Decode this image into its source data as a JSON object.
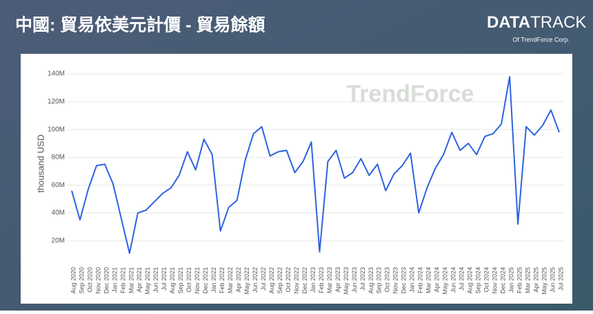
{
  "header": {
    "title": "中國: 貿易依美元計價 - 貿易餘額"
  },
  "logo": {
    "bold": "DATA",
    "light": "TRACK",
    "sub": "Of TrendForce Corp."
  },
  "watermark": "TrendForce",
  "chart_data": {
    "type": "line",
    "y_label": "thousand USD",
    "color": "#2d62e0",
    "grid": true,
    "ylim": [
      8000000,
      146000000
    ],
    "yticks": [
      {
        "value": 20000000,
        "label": "20M"
      },
      {
        "value": 40000000,
        "label": "40M"
      },
      {
        "value": 60000000,
        "label": "60M"
      },
      {
        "value": 80000000,
        "label": "80M"
      },
      {
        "value": 100000000,
        "label": "100M"
      },
      {
        "value": 120000000,
        "label": "120M"
      },
      {
        "value": 140000000,
        "label": "140M"
      }
    ],
    "categories": [
      "Aug 2020",
      "Sep 2020",
      "Oct 2020",
      "Nov 2020",
      "Dec 2020",
      "Jan 2021",
      "Feb 2021",
      "Mar 2021",
      "Apr 2021",
      "May 2021",
      "Jun 2021",
      "Jul 2021",
      "Aug 2021",
      "Sep 2021",
      "Oct 2021",
      "Nov 2021",
      "Dec 2021",
      "Jan 2022",
      "Feb 2022",
      "Mar 2022",
      "Apr 2022",
      "May 2022",
      "Jun 2022",
      "Jul 2022",
      "Aug 2022",
      "Sep 2022",
      "Oct 2022",
      "Nov 2022",
      "Dec 2022",
      "Jan 2023",
      "Feb 2023",
      "Mar 2023",
      "Apr 2023",
      "May 2023",
      "Jun 2023",
      "Jul 2023",
      "Aug 2023",
      "Sep 2023",
      "Oct 2023",
      "Nov 2023",
      "Dec 2023",
      "Jan 2024",
      "Feb 2024",
      "Mar 2024",
      "Apr 2024",
      "May 2024",
      "Jun 2024",
      "Jul 2024",
      "Aug 2024",
      "Sep 2024",
      "Oct 2024",
      "Nov 2024",
      "Dec 2024",
      "Jan 2025",
      "Feb 2025",
      "Mar 2025",
      "Apr 2025",
      "May 2025",
      "Jun 2025",
      "Jul 2025"
    ],
    "values": [
      56000000,
      35000000,
      57000000,
      74000000,
      75000000,
      61000000,
      36000000,
      11000000,
      40000000,
      42000000,
      48000000,
      54000000,
      58000000,
      67000000,
      84000000,
      71000000,
      93000000,
      82000000,
      27000000,
      44000000,
      49000000,
      78000000,
      97000000,
      102000000,
      81000000,
      84000000,
      85000000,
      69000000,
      77000000,
      91000000,
      12000000,
      77000000,
      85000000,
      65000000,
      69000000,
      79000000,
      67000000,
      75000000,
      56000000,
      68000000,
      74000000,
      83000000,
      40000000,
      58000000,
      72000000,
      82000000,
      98000000,
      85000000,
      90000000,
      82000000,
      95000000,
      97000000,
      104000000,
      138000000,
      32000000,
      102000000,
      96000000,
      103000000,
      114000000,
      98000000
    ]
  }
}
